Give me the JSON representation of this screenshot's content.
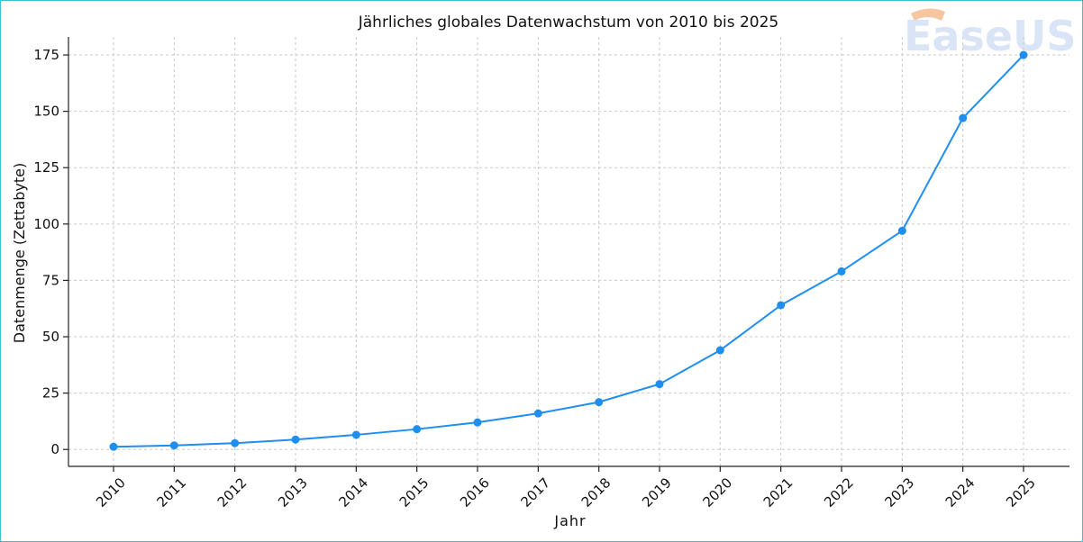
{
  "chart_data": {
    "type": "line",
    "title": "Jährliches globales Datenwachstum von 2010 bis 2025",
    "xlabel": "Jahr",
    "ylabel": "Datenmenge (Zettabyte)",
    "categories": [
      "2010",
      "2011",
      "2012",
      "2013",
      "2014",
      "2015",
      "2016",
      "2017",
      "2018",
      "2019",
      "2020",
      "2021",
      "2022",
      "2023",
      "2024",
      "2025"
    ],
    "series": [
      {
        "values": [
          1.2,
          1.8,
          2.8,
          4.4,
          6.5,
          9,
          12,
          16,
          21,
          29,
          44,
          64,
          79,
          97,
          147,
          175
        ],
        "color": "#1f8ef1"
      }
    ],
    "yticks": [
      0,
      25,
      50,
      75,
      100,
      125,
      150,
      175
    ],
    "ylim": [
      -7.5,
      183
    ],
    "grid": true,
    "marker": "circle"
  },
  "watermark": {
    "text": "EaseUS",
    "color": "#d9e4f7",
    "accent": "#f7c59f"
  }
}
